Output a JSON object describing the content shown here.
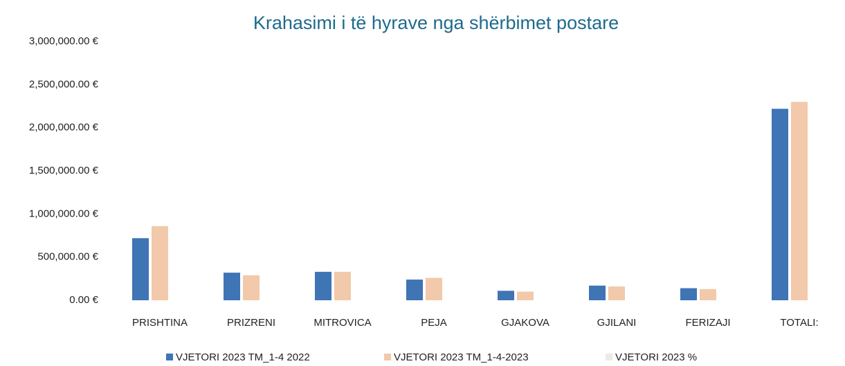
{
  "chart_data": {
    "type": "bar",
    "title": "Krahasimi i të hyrave nga shërbimet postare",
    "categories": [
      "PRISHTINA",
      "PRIZRENI",
      "MITROVICA",
      "PEJA",
      "GJAKOVA",
      "GJILANI",
      "FERIZAJI",
      "TOTALI:"
    ],
    "series": [
      {
        "name": "VJETORI 2023 TM_1-4 2022",
        "color": "#3f74b5",
        "values": [
          720000,
          320000,
          330000,
          240000,
          110000,
          170000,
          140000,
          2220000
        ]
      },
      {
        "name": "VJETORI 2023 TM_1-4-2023",
        "color": "#f2c9ab",
        "values": [
          860000,
          290000,
          330000,
          260000,
          100000,
          160000,
          130000,
          2300000
        ]
      },
      {
        "name": "VJETORI 2023 %",
        "color": "#eeeae4",
        "values": [
          0,
          0,
          0,
          0,
          0,
          0,
          0,
          0
        ]
      }
    ],
    "ylim": [
      0,
      3000000
    ],
    "yticks": [
      {
        "value": 0,
        "label": "0.00 €"
      },
      {
        "value": 500000,
        "label": "500,000.00 €"
      },
      {
        "value": 1000000,
        "label": "1,000,000.00 €"
      },
      {
        "value": 1500000,
        "label": "1,500,000.00 €"
      },
      {
        "value": 2000000,
        "label": "2,000,000.00 €"
      },
      {
        "value": 2500000,
        "label": "2,500,000.00 €"
      },
      {
        "value": 3000000,
        "label": "3,000,000.00 €"
      }
    ],
    "grid": false,
    "legend": "bottom"
  }
}
